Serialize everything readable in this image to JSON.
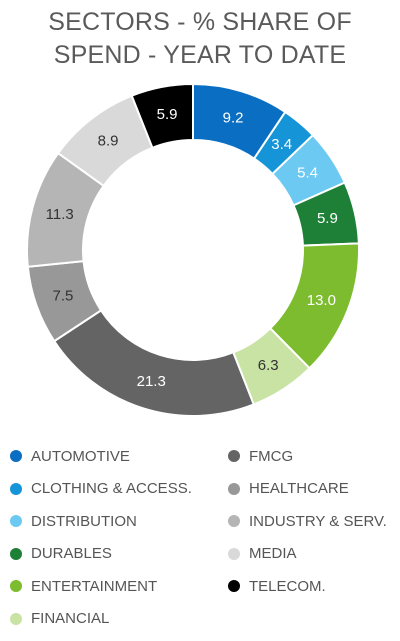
{
  "chart_data": {
    "type": "pie",
    "subtype": "donut",
    "title_lines": [
      "SECTORS - % SHARE OF",
      "SPEND - YEAR TO DATE"
    ],
    "slices": [
      {
        "name": "AUTOMOTIVE",
        "value": 9.2,
        "label": "9.2",
        "color": "#0a6fc2",
        "label_color": "#ffffff"
      },
      {
        "name": "CLOTHING & ACCESS.",
        "value": 3.4,
        "label": "3.4",
        "color": "#1594d8",
        "label_color": "#ffffff"
      },
      {
        "name": "DISTRIBUTION",
        "value": 5.4,
        "label": "5.4",
        "color": "#6cc9f2",
        "label_color": "#ffffff"
      },
      {
        "name": "DURABLES",
        "value": 5.9,
        "label": "5.9",
        "color": "#1e7f36",
        "label_color": "#ffffff"
      },
      {
        "name": "ENTERTAINMENT",
        "value": 13.0,
        "label": "13.0",
        "color": "#7cbc2e",
        "label_color": "#ffffff"
      },
      {
        "name": "FINANCIAL",
        "value": 6.3,
        "label": "6.3",
        "color": "#c8e3a3",
        "label_color": "#333333"
      },
      {
        "name": "FMCG",
        "value": 21.3,
        "label": "21.3",
        "color": "#646464",
        "label_color": "#ffffff"
      },
      {
        "name": "HEALTHCARE",
        "value": 7.5,
        "label": "7.5",
        "color": "#989898",
        "label_color": "#333333"
      },
      {
        "name": "INDUSTRY & SERV.",
        "value": 11.3,
        "label": "11.3",
        "color": "#b5b5b5",
        "label_color": "#333333"
      },
      {
        "name": "MEDIA",
        "value": 8.9,
        "label": "8.9",
        "color": "#d9d9d9",
        "label_color": "#333333"
      },
      {
        "name": "TELECOM.",
        "value": 5.9,
        "label": "5.9",
        "color": "#000000",
        "label_color": "#ffffff"
      }
    ],
    "legend_placement": "bottom, two columns",
    "legend_columns": [
      [
        "AUTOMOTIVE",
        "CLOTHING & ACCESS.",
        "DISTRIBUTION",
        "DURABLES",
        "ENTERTAINMENT",
        "FINANCIAL"
      ],
      [
        "FMCG",
        "HEALTHCARE",
        "INDUSTRY & SERV.",
        "MEDIA",
        "TELECOM."
      ]
    ]
  }
}
